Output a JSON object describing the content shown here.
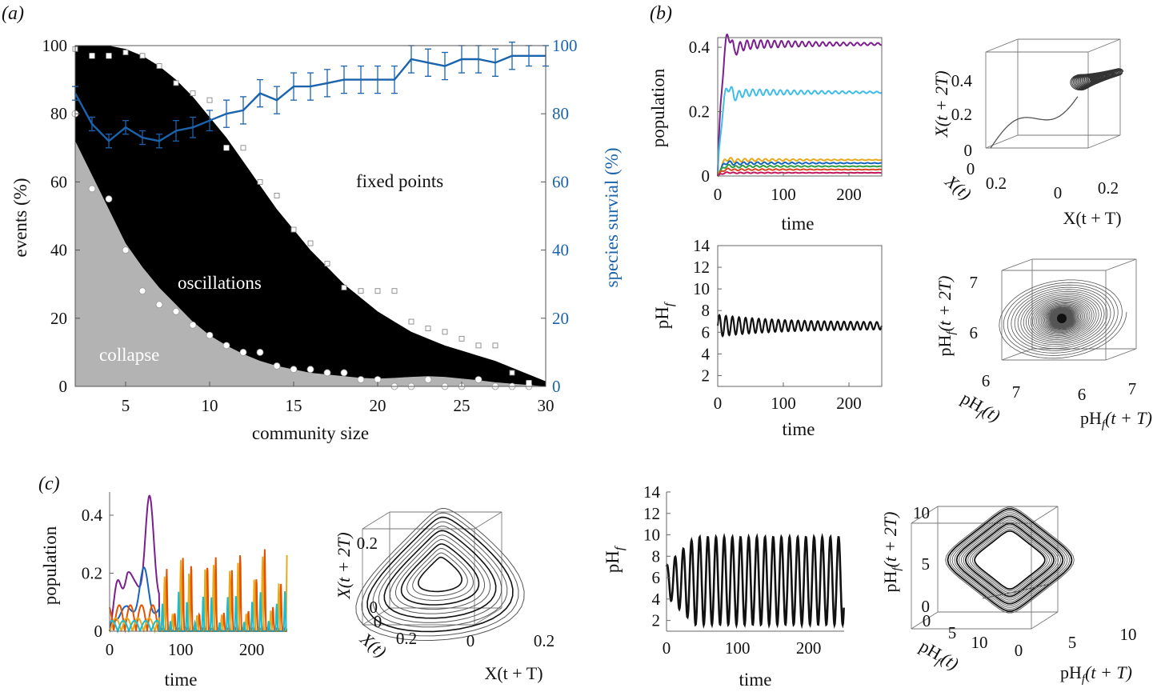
{
  "colors": {
    "oscillations": "#000000",
    "collapse": "#b3b3b3",
    "fixed_points": "#ffffff",
    "survival": "#1a63ad",
    "series": [
      "#7b1e8e",
      "#3fbde8",
      "#e8a91b",
      "#2f9e3c",
      "#d6471e",
      "#c2185b",
      "#1565c0",
      "#e65100",
      "#17becf"
    ]
  },
  "panels": {
    "a": {
      "letter": "(a)",
      "xlabel": "community size",
      "ylabel_left": "events (%)",
      "ylabel_right": "species survial (%)",
      "region_labels": {
        "fixed": "fixed points",
        "osc": "oscillations",
        "collapse": "collapse"
      },
      "xticks": [
        "5",
        "10",
        "15",
        "20",
        "25",
        "30"
      ],
      "yticks": [
        "0",
        "20",
        "40",
        "60",
        "80",
        "100"
      ],
      "yticks_right": [
        "0",
        "20",
        "40",
        "60",
        "80",
        "100"
      ]
    },
    "b": {
      "letter": "(b)",
      "pop_ylabel": "population",
      "pop_yticks": [
        "0",
        "0.2",
        "0.4"
      ],
      "time_label": "time",
      "time_ticks": [
        "0",
        "100",
        "200"
      ],
      "ph_ylabel": "pH",
      "ph_sub": "f",
      "ph_yticks": [
        "2",
        "4",
        "6",
        "8",
        "10",
        "12",
        "14"
      ],
      "phase1_zlabel": "X(t + 2T)",
      "phase1_zticks": [
        "0",
        "0.2",
        "0.4"
      ],
      "phase1_xlabel": "X(t + T)",
      "phase1_xticks": [
        "0",
        "0.2"
      ],
      "phase1_ylabel": "X(t)",
      "phase1_yticks": [
        "0",
        "0.2"
      ],
      "phase2_zlabel": "(t + 2T)",
      "phase2_zticks": [
        "6",
        "7"
      ],
      "phase2_xlabel": "(t + T)",
      "phase2_xticks": [
        "6",
        "7"
      ],
      "phase2_ylabel": "(t)",
      "phase2_yticks": [
        "6",
        "7"
      ]
    },
    "c": {
      "letter": "(c)",
      "pop_ylabel": "population",
      "pop_yticks": [
        "0",
        "0.2",
        "0.4"
      ],
      "time_label": "time",
      "time_ticks": [
        "0",
        "100",
        "200"
      ],
      "phase1_zlabel": "X(t + 2T)",
      "phase1_zticks": [
        "0",
        "0.2"
      ],
      "phase1_xlabel": "X(t + T)",
      "phase1_xticks": [
        "0",
        "0.2"
      ],
      "phase1_ylabel": "X(t)",
      "phase1_yticks": [
        "0",
        "0.2"
      ],
      "ph_ylabel": "pH",
      "ph_sub": "f",
      "ph_yticks": [
        "2",
        "4",
        "6",
        "8",
        "10",
        "12",
        "14"
      ],
      "phase2_zlabel": "(t + 2T)",
      "phase2_zticks": [
        "0",
        "5",
        "10"
      ],
      "phase2_xlabel": "(t + T)",
      "phase2_xticks": [
        "0",
        "5",
        "10"
      ],
      "phase2_ylabel": "(t)",
      "phase2_yticks": [
        "0",
        "5",
        "10"
      ]
    }
  },
  "chart_data": [
    {
      "id": "a",
      "type": "area",
      "xlabel": "community size",
      "ylabel": "events (%)",
      "y2label": "species survial (%)",
      "xlim": [
        2,
        30
      ],
      "ylim": [
        0,
        100
      ],
      "y2lim": [
        0,
        100
      ],
      "series": [
        {
          "name": "collapse",
          "x": [
            2,
            3,
            4,
            5,
            6,
            7,
            8,
            9,
            10,
            11,
            12,
            13,
            14,
            15,
            16,
            17,
            18,
            19,
            20,
            21,
            22,
            23,
            24,
            25,
            26,
            27,
            28,
            29,
            30
          ],
          "values": [
            72,
            62,
            52,
            42,
            35,
            29,
            24,
            19,
            15,
            12,
            9.5,
            7.5,
            6,
            5,
            4,
            3.5,
            3,
            2.5,
            2.3,
            2.5,
            2.8,
            3,
            2.8,
            2.3,
            1.8,
            1.2,
            0.8,
            0.4,
            0
          ]
        },
        {
          "name": "oscillations",
          "x": [
            2,
            3,
            4,
            5,
            6,
            7,
            8,
            9,
            10,
            11,
            12,
            13,
            14,
            15,
            16,
            17,
            18,
            19,
            20,
            21,
            22,
            23,
            24,
            25,
            26,
            27,
            28,
            29,
            30
          ],
          "values": [
            100,
            100,
            100,
            99,
            97,
            94,
            90,
            85,
            79,
            73,
            66,
            59,
            52,
            46,
            40,
            35,
            30,
            26,
            22,
            19,
            16,
            14,
            12,
            10.5,
            9,
            7.5,
            5.5,
            3.5,
            1.5
          ]
        },
        {
          "name": "collapse markers",
          "x": [
            2,
            3,
            4,
            5,
            6,
            7,
            8,
            9,
            10,
            11,
            12,
            13,
            14,
            15,
            16,
            17,
            18,
            19,
            20,
            21,
            22,
            23,
            24,
            25,
            26,
            27,
            28,
            29
          ],
          "values": [
            80,
            58,
            55,
            40,
            28,
            24,
            22,
            18,
            15,
            12,
            10,
            10,
            6,
            5,
            5,
            4,
            4,
            2,
            2,
            0,
            0,
            2,
            0,
            0,
            2,
            0,
            0,
            0
          ]
        },
        {
          "name": "oscillation markers",
          "x": [
            2,
            3,
            4,
            5,
            6,
            7,
            8,
            9,
            10,
            11,
            12,
            13,
            14,
            15,
            16,
            17,
            18,
            19,
            20,
            21,
            22,
            23,
            24,
            25,
            26,
            27,
            28,
            29
          ],
          "values": [
            99,
            97,
            97,
            98,
            97,
            94,
            89,
            86,
            84,
            70,
            70,
            60,
            56,
            46,
            42,
            36,
            29,
            28,
            28,
            28,
            19,
            17,
            16,
            14,
            12,
            12,
            4,
            1
          ]
        },
        {
          "name": "species survival",
          "axis": "right",
          "x": [
            2,
            3,
            4,
            5,
            6,
            7,
            8,
            9,
            10,
            11,
            12,
            13,
            14,
            15,
            16,
            17,
            18,
            19,
            20,
            21,
            22,
            23,
            24,
            25,
            26,
            27,
            28,
            29,
            30
          ],
          "values": [
            86,
            77,
            72,
            76,
            73,
            72,
            75,
            76,
            78,
            80,
            81,
            86,
            84,
            88,
            88,
            89,
            90,
            90,
            90,
            90,
            96,
            95,
            94,
            96,
            96,
            95,
            97,
            97,
            97
          ],
          "error": [
            2,
            2,
            2,
            2,
            2,
            2,
            3,
            3,
            3,
            4,
            4,
            4,
            4,
            4,
            4,
            4,
            4,
            4,
            4,
            4,
            4,
            4,
            4,
            4,
            4,
            4,
            4,
            3,
            3
          ]
        }
      ]
    },
    {
      "id": "b-population",
      "type": "line",
      "xlabel": "time",
      "ylabel": "population",
      "xlim": [
        0,
        250
      ],
      "ylim": [
        0,
        0.43
      ],
      "series": [
        {
          "eq": 0.41,
          "amp": 0.02
        },
        {
          "eq": 0.26,
          "amp": 0.015
        },
        {
          "eq": 0.05,
          "amp": 0.006
        },
        {
          "eq": 0.04,
          "amp": 0.005
        },
        {
          "eq": 0.03,
          "amp": 0.004
        },
        {
          "eq": 0.02,
          "amp": 0.003
        },
        {
          "eq": 0.01,
          "amp": 0.002
        }
      ]
    },
    {
      "id": "b-pH",
      "type": "line",
      "xlabel": "time",
      "ylabel": "pH",
      "xlim": [
        0,
        250
      ],
      "ylim": [
        1,
        14
      ],
      "series": [
        {
          "mean": 6.6,
          "amp_start": 1.0,
          "amp_end": 0.3,
          "period": 10
        }
      ]
    },
    {
      "id": "c-population",
      "type": "line",
      "xlabel": "time",
      "ylabel": "population",
      "xlim": [
        0,
        250
      ],
      "ylim": [
        0,
        0.48
      ],
      "series": [
        {
          "peaks_early": 0.47,
          "peaks_late": 0
        },
        {
          "peaks_early": 0.22,
          "peaks_late": 0
        },
        {
          "peaks_early": 0.1,
          "peaks_late": 0.3
        },
        {
          "peaks_early": 0.05,
          "peaks_late": 0.28
        },
        {
          "peaks_early": 0.04,
          "peaks_late": 0.15
        }
      ]
    },
    {
      "id": "c-pH",
      "type": "line",
      "xlabel": "time",
      "ylabel": "pH",
      "xlim": [
        0,
        250
      ],
      "ylim": [
        1,
        14
      ],
      "series": [
        {
          "mean": 5.7,
          "amp": 4.1,
          "period": 11.5,
          "start": 7.2
        }
      ]
    }
  ]
}
